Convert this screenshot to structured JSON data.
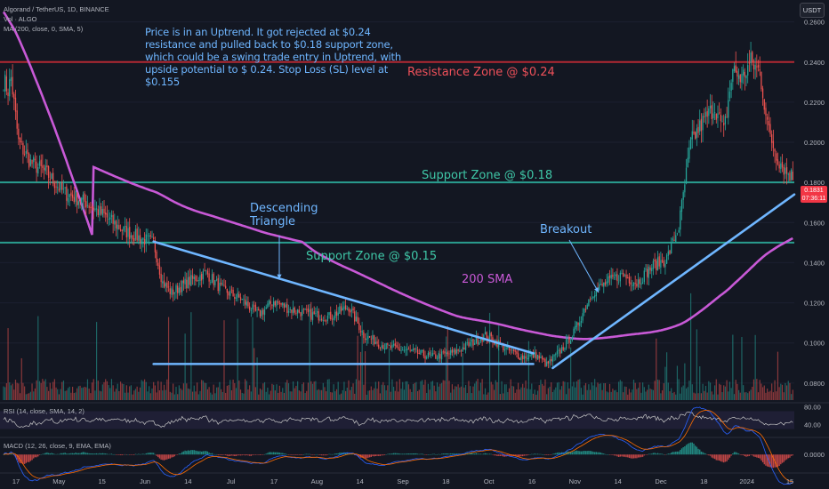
{
  "legend": {
    "symbol": "Algorand / TetherUS, 1D, BINANCE",
    "vol": "Vol · ALGO",
    "ma": "MA (200, close, 0, SMA, 5)"
  },
  "note": "Price is in an Uptrend. It got rejected at $0.24 resistance and pulled back to $0.18 support zone, which could be a swing trade entry in Uptrend, with upside potential to $ 0.24. Stop Loss (SL) level at $0.155",
  "currency_button": "USDT",
  "rsi_label": "RSI (14, close, SMA, 14, 2)",
  "macd_label": "MACD (12, 26, close, 9, EMA, EMA)",
  "price_tag": {
    "price": "0.1831",
    "countdown": "07:36:11"
  },
  "colors": {
    "background": "#131722",
    "up": "#26a69a",
    "down": "#ef5350",
    "sma": "#c859d6",
    "resistance": "#b22833",
    "support": "#2a9d8f",
    "trend": "#6fb6ff",
    "annotation_resistance": "#f0515a",
    "annotation_support": "#3fc8a8",
    "annotation_trend": "#6fb6ff"
  },
  "chart_data": {
    "type": "candlestick",
    "x_ticks": [
      "17",
      "May",
      "15",
      "Jun",
      "14",
      "Jul",
      "17",
      "Aug",
      "14",
      "Sep",
      "18",
      "Oct",
      "16",
      "Nov",
      "14",
      "Dec",
      "18",
      "2024",
      "15"
    ],
    "y_ticks": [
      "0.2600",
      "0.2400",
      "0.2200",
      "0.2000",
      "0.1800",
      "0.1600",
      "0.1400",
      "0.1200",
      "0.1000",
      "0.0800"
    ],
    "ylim": [
      0.0715,
      0.2665
    ],
    "rsi_ticks": [
      "80.00",
      "40.00"
    ],
    "rsi_ylim": [
      15,
      85
    ],
    "macd_ticks": [
      "0.0000"
    ],
    "macd_ylim": [
      -0.006,
      0.0055
    ],
    "levels": [
      {
        "label": "Resistance Zone @ $0.24",
        "price": 0.24,
        "kind": "resistance"
      },
      {
        "label": "Support Zone @ $0.18",
        "price": 0.18,
        "kind": "support"
      },
      {
        "label": "Support Zone @ $0.15",
        "price": 0.15,
        "kind": "support"
      }
    ],
    "annotations": {
      "triangle": "Descending\nTriangle",
      "breakout": "Breakout",
      "sma": "200 SMA"
    },
    "anchors": [
      [
        0,
        0.231
      ],
      [
        3,
        0.226
      ],
      [
        5,
        0.232
      ],
      [
        10,
        0.2
      ],
      [
        18,
        0.19
      ],
      [
        28,
        0.185
      ],
      [
        40,
        0.175
      ],
      [
        55,
        0.17
      ],
      [
        68,
        0.163
      ],
      [
        80,
        0.156
      ],
      [
        92,
        0.152
      ],
      [
        100,
        0.15
      ],
      [
        106,
        0.13
      ],
      [
        112,
        0.125
      ],
      [
        122,
        0.13
      ],
      [
        135,
        0.135
      ],
      [
        145,
        0.127
      ],
      [
        158,
        0.122
      ],
      [
        170,
        0.114
      ],
      [
        180,
        0.121
      ],
      [
        190,
        0.117
      ],
      [
        205,
        0.114
      ],
      [
        217,
        0.113
      ],
      [
        230,
        0.118
      ],
      [
        240,
        0.104
      ],
      [
        255,
        0.098
      ],
      [
        270,
        0.096
      ],
      [
        285,
        0.093
      ],
      [
        300,
        0.095
      ],
      [
        312,
        0.1
      ],
      [
        322,
        0.104
      ],
      [
        335,
        0.097
      ],
      [
        345,
        0.093
      ],
      [
        355,
        0.094
      ],
      [
        362,
        0.089
      ],
      [
        370,
        0.095
      ],
      [
        380,
        0.105
      ],
      [
        392,
        0.125
      ],
      [
        402,
        0.13
      ],
      [
        412,
        0.134
      ],
      [
        422,
        0.13
      ],
      [
        432,
        0.138
      ],
      [
        442,
        0.142
      ],
      [
        450,
        0.158
      ],
      [
        458,
        0.2
      ],
      [
        466,
        0.21
      ],
      [
        474,
        0.218
      ],
      [
        480,
        0.205
      ],
      [
        486,
        0.236
      ],
      [
        492,
        0.232
      ],
      [
        498,
        0.24
      ],
      [
        504,
        0.235
      ],
      [
        510,
        0.205
      ],
      [
        516,
        0.192
      ],
      [
        522,
        0.185
      ],
      [
        526,
        0.183
      ]
    ]
  }
}
